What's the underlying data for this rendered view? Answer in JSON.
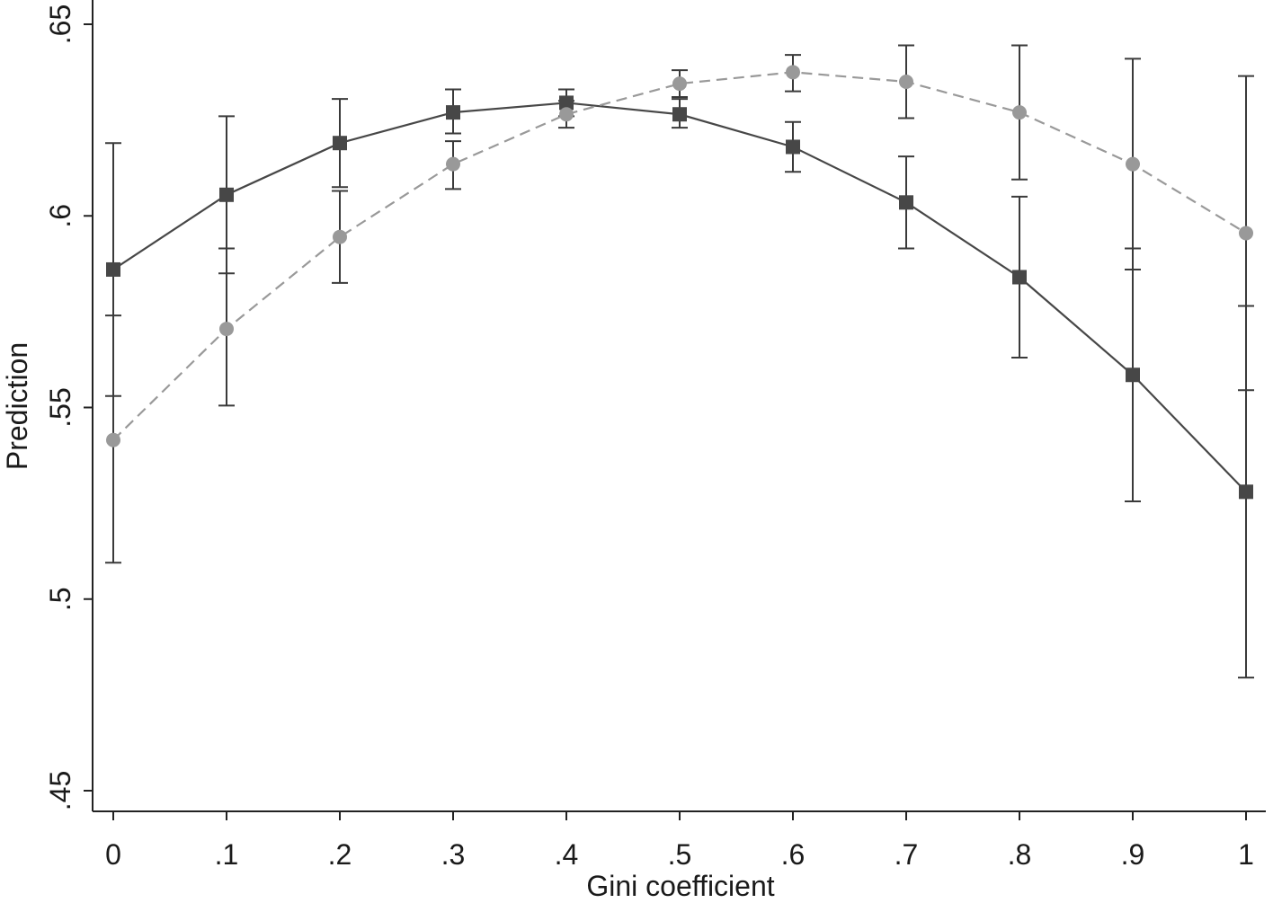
{
  "chart_data": {
    "type": "line",
    "xlabel": "Gini coefficient",
    "ylabel": "Prediction",
    "xlim": [
      0,
      1
    ],
    "ylim": [
      0.45,
      0.65
    ],
    "x_ticks": [
      0,
      0.1,
      0.2,
      0.3,
      0.4,
      0.5,
      0.6,
      0.7,
      0.8,
      0.9,
      1
    ],
    "x_tick_labels": [
      "0",
      ".1",
      ".2",
      ".3",
      ".4",
      ".5",
      ".6",
      ".7",
      ".8",
      ".9",
      "1"
    ],
    "y_ticks": [
      0.45,
      0.5,
      0.55,
      0.6,
      0.65
    ],
    "y_tick_labels": [
      ".45",
      ".5",
      ".55",
      ".6",
      ".65"
    ],
    "grid": false,
    "legend": "none",
    "x": [
      0,
      0.1,
      0.2,
      0.3,
      0.4,
      0.5,
      0.6,
      0.7,
      0.8,
      0.9,
      1
    ],
    "series": [
      {
        "style": "solid",
        "marker": "square",
        "color": "#474747",
        "values": [
          0.586,
          0.6055,
          0.619,
          0.627,
          0.6295,
          0.6265,
          0.618,
          0.6035,
          0.584,
          0.5585,
          0.528
        ],
        "ci_low": [
          0.553,
          0.585,
          0.6075,
          0.6215,
          0.626,
          0.623,
          0.6115,
          0.5915,
          0.563,
          0.5255,
          0.4795
        ],
        "ci_high": [
          0.619,
          0.626,
          0.6305,
          0.633,
          0.633,
          0.6305,
          0.6245,
          0.6155,
          0.605,
          0.5915,
          0.5765
        ]
      },
      {
        "style": "dashed",
        "marker": "circle",
        "color": "#999999",
        "values": [
          0.5415,
          0.5705,
          0.5945,
          0.6135,
          0.6265,
          0.6345,
          0.6375,
          0.635,
          0.627,
          0.6135,
          0.5955
        ],
        "ci_low": [
          0.5095,
          0.5505,
          0.5825,
          0.607,
          0.623,
          0.631,
          0.6325,
          0.6255,
          0.6095,
          0.586,
          0.5545
        ],
        "ci_high": [
          0.574,
          0.5915,
          0.6065,
          0.6195,
          0.63,
          0.638,
          0.642,
          0.6445,
          0.6445,
          0.641,
          0.6365
        ]
      }
    ]
  }
}
